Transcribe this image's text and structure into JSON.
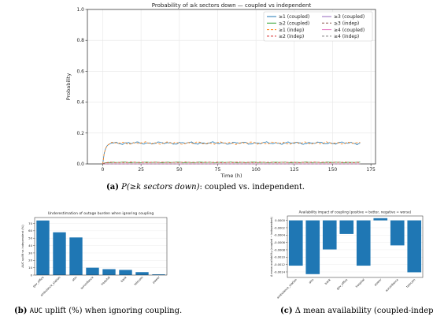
{
  "captions": {
    "a": {
      "label": "(a)",
      "math": "P(≥k sectors down)",
      "text": ": coupled vs. independent."
    },
    "b": {
      "label": "(b)",
      "mono": "AUC",
      "text": " uplift (%) when ignoring coupling."
    },
    "c": {
      "label": "(c)",
      "text": "Δ mean availability (coupled-indep.)."
    }
  },
  "chart_data": [
    {
      "id": "a",
      "type": "line",
      "title": "Probability of ≥k sectors down — coupled vs independent",
      "xlabel": "Time (h)",
      "ylabel": "Probability",
      "xlim": [
        -10,
        178
      ],
      "ylim": [
        0,
        1
      ],
      "xticks": [
        0,
        25,
        50,
        75,
        100,
        125,
        150,
        175
      ],
      "yticks": [
        0.0,
        0.2,
        0.4,
        0.6,
        0.8,
        1.0
      ],
      "ytick_labels": [
        "0.0",
        "0.2",
        "0.4",
        "0.6",
        "0.8",
        "1.0"
      ],
      "grid": true,
      "legend_position": "top-right",
      "x_end": 168,
      "series": [
        {
          "name": "≥1 (coupled)",
          "color": "#1f77b4",
          "dash": false,
          "level": 0.135
        },
        {
          "name": "≥1 (indep)",
          "color": "#ff7f0e",
          "dash": true,
          "level": 0.135
        },
        {
          "name": "≥2 (coupled)",
          "color": "#2ca02c",
          "dash": false,
          "level": 0.01
        },
        {
          "name": "≥2 (indep)",
          "color": "#d62728",
          "dash": true,
          "level": 0.01
        },
        {
          "name": "≥3 (coupled)",
          "color": "#9467bd",
          "dash": false,
          "level": 0.0
        },
        {
          "name": "≥3 (indep)",
          "color": "#8c564b",
          "dash": true,
          "level": 0.0
        },
        {
          "name": "≥4 (coupled)",
          "color": "#e377c2",
          "dash": false,
          "level": 0.0
        },
        {
          "name": "≥4 (indep)",
          "color": "#7f7f7f",
          "dash": true,
          "level": 0.0
        }
      ],
      "legend_order": [
        0,
        4,
        2,
        5,
        1,
        6,
        3,
        7
      ]
    },
    {
      "id": "b",
      "type": "bar",
      "title": "Underestimation of outage burden when ignoring coupling",
      "ylabel": "AUC uplift vs independent (%)",
      "categories": [
        "gov_office",
        "ambulance_station",
        "atm",
        "surveillance",
        "hospital",
        "bank",
        "telecom",
        "power"
      ],
      "values": [
        74,
        58,
        51,
        10,
        8,
        7,
        4,
        1
      ],
      "ylim": [
        0,
        78
      ],
      "yticks": [
        0,
        10,
        20,
        30,
        40,
        50,
        60,
        70
      ],
      "color": "#1f77b4"
    },
    {
      "id": "c",
      "type": "bar",
      "title": "Availability impact of coupling (positive = better, negative = worse)",
      "ylabel": "Δ mean availability (coupled − independent)",
      "categories": [
        "ambulance_station",
        "atm",
        "bank",
        "gov_office",
        "hospital",
        "power",
        "surveillance",
        "telecom"
      ],
      "values": [
        -0.00123,
        -0.00146,
        -0.00079,
        -0.00037,
        -0.00123,
        6e-05,
        -0.00068,
        -0.00141
      ],
      "ylim": [
        -0.00155,
        0.00012
      ],
      "yticks": [
        0.0,
        -0.0002,
        -0.0004,
        -0.0006,
        -0.0008,
        -0.001,
        -0.0012,
        -0.0014
      ],
      "ytick_labels": [
        "0.0000",
        "-0.0002",
        "-0.0004",
        "-0.0006",
        "-0.0008",
        "-0.0010",
        "-0.0012",
        "-0.0014"
      ],
      "color": "#1f77b4"
    }
  ]
}
